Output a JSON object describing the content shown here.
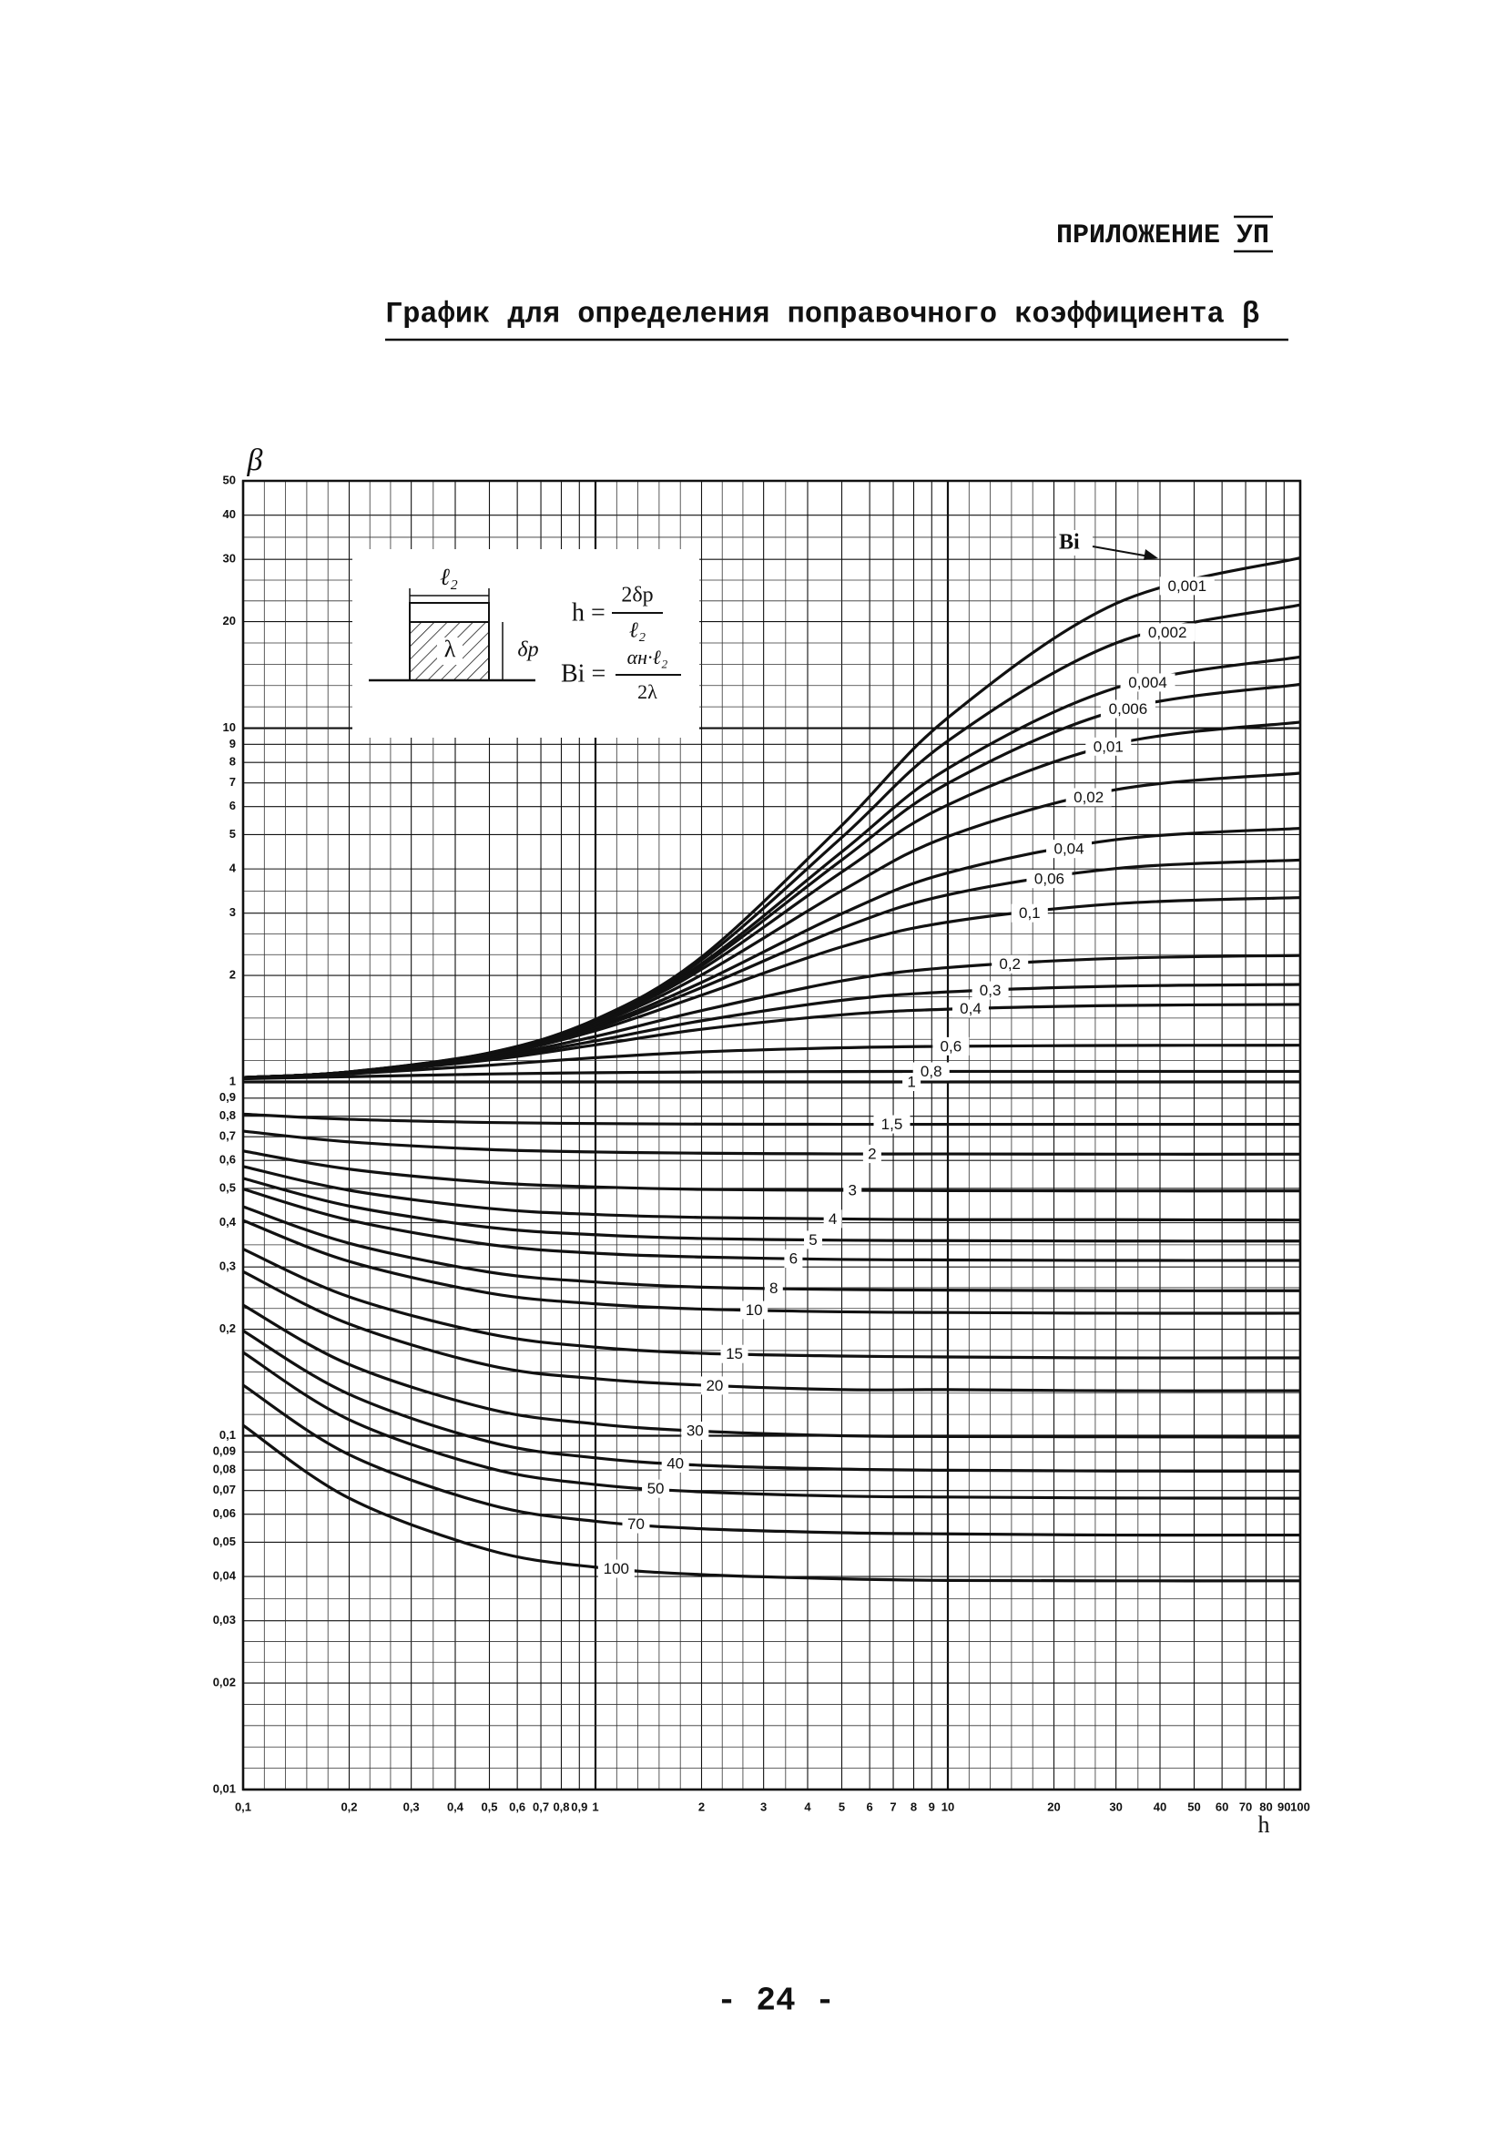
{
  "header": {
    "label": "ПРИЛОЖЕНИЕ",
    "number": "УП"
  },
  "title": "График для определения поправочного коэффициента β",
  "page_number": "- 24 -",
  "inset": {
    "dim_top": "ℓ₂",
    "material": "λ",
    "dim_side": "δр",
    "h_lhs": "h =",
    "h_num": "2δр",
    "h_den": "ℓ₂",
    "bi_lhs": "Bi =",
    "bi_num": "αн·ℓ₂",
    "bi_den": "2λ"
  },
  "chart_data": {
    "type": "line",
    "xscale": "log",
    "yscale": "log",
    "grid": true,
    "line_color": "#111111",
    "ylabel": "β",
    "xlabel": "h",
    "series_label": "Bi",
    "xlim": [
      0.1,
      100
    ],
    "ylim": [
      0.01,
      50
    ],
    "xticks": [
      {
        "value": 0.1,
        "label": "0,1"
      },
      {
        "value": 0.2,
        "label": "0,2"
      },
      {
        "value": 0.3,
        "label": "0,3"
      },
      {
        "value": 0.4,
        "label": "0,4"
      },
      {
        "value": 0.5,
        "label": "0,5"
      },
      {
        "value": 0.6,
        "label": "0,6"
      },
      {
        "value": 0.7,
        "label": "0,7"
      },
      {
        "value": 0.8,
        "label": "0,8"
      },
      {
        "value": 0.9,
        "label": "0,9"
      },
      1,
      2,
      3,
      4,
      5,
      6,
      7,
      8,
      9,
      10,
      20,
      30,
      40,
      50,
      60,
      70,
      80,
      90,
      100
    ],
    "yticks": [
      {
        "value": 0.01,
        "label": "0,01"
      },
      {
        "value": 0.02,
        "label": "0,02"
      },
      {
        "value": 0.03,
        "label": "0,03"
      },
      {
        "value": 0.04,
        "label": "0,04"
      },
      {
        "value": 0.05,
        "label": "0,05"
      },
      {
        "value": 0.06,
        "label": "0,06"
      },
      {
        "value": 0.07,
        "label": "0,07"
      },
      {
        "value": 0.08,
        "label": "0,08"
      },
      {
        "value": 0.09,
        "label": "0,09"
      },
      {
        "value": 0.1,
        "label": "0,1"
      },
      {
        "value": 0.2,
        "label": "0,2"
      },
      {
        "value": 0.3,
        "label": "0,3"
      },
      {
        "value": 0.4,
        "label": "0,4"
      },
      {
        "value": 0.5,
        "label": "0,5"
      },
      {
        "value": 0.6,
        "label": "0,6"
      },
      {
        "value": 0.7,
        "label": "0,7"
      },
      {
        "value": 0.8,
        "label": "0,8"
      },
      {
        "value": 0.9,
        "label": "0,9"
      },
      1,
      2,
      3,
      4,
      5,
      6,
      7,
      8,
      9,
      10,
      20,
      30,
      40,
      50
    ],
    "x": [
      0.1,
      0.2,
      0.5,
      1,
      2,
      5,
      10,
      30,
      100
    ],
    "series": [
      {
        "name": "0,001",
        "values": [
          1.029,
          1.068,
          1.209,
          1.503,
          2.254,
          5.31,
          10.7,
          22.5,
          30.3
        ]
      },
      {
        "name": "0,002",
        "values": [
          1.029,
          1.067,
          1.207,
          1.496,
          2.212,
          4.91,
          9.2,
          17.4,
          22.3
        ]
      },
      {
        "name": "0,004",
        "values": [
          1.029,
          1.067,
          1.206,
          1.486,
          2.159,
          4.47,
          7.69,
          13.0,
          15.9
        ]
      },
      {
        "name": "0,006",
        "values": [
          1.029,
          1.067,
          1.205,
          1.48,
          2.128,
          4.24,
          6.98,
          11.2,
          13.3
        ]
      },
      {
        "name": "0,01",
        "values": [
          1.029,
          1.067,
          1.203,
          1.472,
          2.082,
          3.92,
          6.07,
          9.03,
          10.4
        ]
      },
      {
        "name": "0,02",
        "values": [
          1.029,
          1.067,
          1.2,
          1.456,
          2.007,
          3.47,
          4.94,
          6.7,
          7.46
        ]
      },
      {
        "name": "0,04",
        "values": [
          1.029,
          1.066,
          1.196,
          1.435,
          1.911,
          2.99,
          3.9,
          4.84,
          5.21
        ]
      },
      {
        "name": "0,06",
        "values": [
          1.029,
          1.066,
          1.193,
          1.419,
          1.847,
          2.72,
          3.38,
          4.01,
          4.24
        ]
      },
      {
        "name": "0,1",
        "values": [
          1.029,
          1.065,
          1.188,
          1.396,
          1.759,
          2.41,
          2.83,
          3.19,
          3.32
        ]
      },
      {
        "name": "0,2",
        "values": [
          1.029,
          1.064,
          1.175,
          1.345,
          1.591,
          1.93,
          2.105,
          2.235,
          2.278
        ]
      },
      {
        "name": "0,3",
        "values": [
          1.028,
          1.062,
          1.165,
          1.306,
          1.489,
          1.701,
          1.797,
          1.865,
          1.886
        ]
      },
      {
        "name": "0,4",
        "values": [
          1.028,
          1.061,
          1.154,
          1.273,
          1.409,
          1.548,
          1.606,
          1.644,
          1.656
        ]
      },
      {
        "name": "0,6",
        "values": [
          1.026,
          1.054,
          1.115,
          1.171,
          1.216,
          1.249,
          1.261,
          1.268,
          1.27
        ]
      },
      {
        "name": "0,8",
        "values": [
          1.021,
          1.035,
          1.053,
          1.062,
          1.067,
          1.07,
          1.071,
          1.071,
          1.071
        ]
      },
      {
        "name": "1",
        "values": [
          1,
          1,
          1,
          1,
          1,
          1,
          1,
          1,
          1
        ]
      },
      {
        "name": "1,5",
        "values": [
          0.811,
          0.784,
          0.768,
          0.763,
          0.76,
          0.759,
          0.759,
          0.759,
          0.759
        ]
      },
      {
        "name": "2",
        "values": [
          0.726,
          0.677,
          0.644,
          0.634,
          0.629,
          0.626,
          0.626,
          0.625,
          0.625
        ]
      },
      {
        "name": "3",
        "values": [
          0.638,
          0.567,
          0.52,
          0.505,
          0.497,
          0.494,
          0.493,
          0.492,
          0.492
        ]
      },
      {
        "name": "4",
        "values": [
          0.577,
          0.494,
          0.439,
          0.422,
          0.414,
          0.41,
          0.408,
          0.408,
          0.407
        ]
      },
      {
        "name": "5",
        "values": [
          0.534,
          0.446,
          0.388,
          0.37,
          0.361,
          0.357,
          0.356,
          0.355,
          0.355
        ]
      },
      {
        "name": "6",
        "values": [
          0.498,
          0.407,
          0.347,
          0.328,
          0.32,
          0.315,
          0.314,
          0.313,
          0.313
        ]
      },
      {
        "name": "8",
        "values": [
          0.444,
          0.35,
          0.29,
          0.272,
          0.263,
          0.259,
          0.258,
          0.257,
          0.257
        ]
      },
      {
        "name": "10",
        "values": [
          0.406,
          0.311,
          0.253,
          0.236,
          0.228,
          0.224,
          0.223,
          0.222,
          0.222
        ]
      },
      {
        "name": "15",
        "values": [
          0.337,
          0.247,
          0.194,
          0.178,
          0.171,
          0.168,
          0.167,
          0.166,
          0.166
        ]
      },
      {
        "name": "20",
        "values": [
          0.291,
          0.207,
          0.158,
          0.145,
          0.139,
          0.135,
          0.135,
          0.134,
          0.134
        ]
      },
      {
        "name": "30",
        "values": [
          0.234,
          0.159,
          0.119,
          0.108,
          0.103,
          0.1,
          0.0995,
          0.0993,
          0.0991
        ]
      },
      {
        "name": "40",
        "values": [
          0.198,
          0.131,
          0.0961,
          0.0866,
          0.0825,
          0.0805,
          0.0799,
          0.0795,
          0.0794
        ]
      },
      {
        "name": "50",
        "values": [
          0.172,
          0.111,
          0.081,
          0.0728,
          0.0694,
          0.0675,
          0.0671,
          0.0667,
          0.0666
        ]
      },
      {
        "name": "70",
        "values": [
          0.139,
          0.0884,
          0.0639,
          0.0573,
          0.0546,
          0.0532,
          0.0528,
          0.0524,
          0.0524
        ]
      },
      {
        "name": "100",
        "values": [
          0.107,
          0.0666,
          0.0475,
          0.0425,
          0.0405,
          0.0394,
          0.039,
          0.0389,
          0.0389
        ]
      }
    ]
  }
}
